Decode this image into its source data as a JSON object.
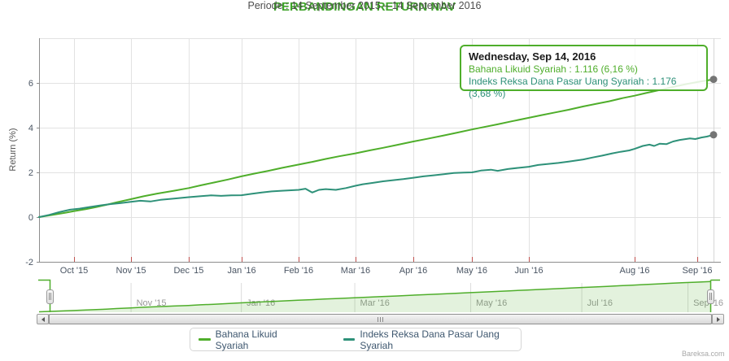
{
  "title": "PERBANDINGAN RETURN NAV",
  "subtitle": "Periode : 14 September 2015 – 14 September 2016",
  "watermark": "Bareksa.com",
  "colors": {
    "title": "#3fa32a",
    "series1": "#4fae2b",
    "series2": "#2e9179",
    "grid": "#e2e2e2",
    "axis_line": "#8d8d8d",
    "x_tick_mark": "#c0504d",
    "axis_text": "#4a5563",
    "nav_label": "#999999",
    "marker": "#757575",
    "crosshair": "#d6d6d6"
  },
  "tooltip": {
    "date": "Wednesday, Sep 14, 2016",
    "line1": "Bahana Likuid Syariah : 1.116 (6,16 %)",
    "line2": "Indeks Reksa Dana Pasar Uang Syariah : 1.176 (3,68 %)"
  },
  "chart_data": {
    "type": "line",
    "title": "PERBANDINGAN RETURN NAV",
    "subtitle": "Periode : 14 September 2015 – 14 September 2016",
    "xlabel": "",
    "ylabel": "Return (%)",
    "ylim": [
      -2,
      8
    ],
    "y_ticks": [
      -2,
      0,
      2,
      4,
      6
    ],
    "grid": true,
    "legend_position": "bottom",
    "x_ticks": [
      {
        "label": "Oct '15",
        "t": 0.0519
      },
      {
        "label": "Nov '15",
        "t": 0.1363
      },
      {
        "label": "Dec '15",
        "t": 0.2219
      },
      {
        "label": "Jan '16",
        "t": 0.3004
      },
      {
        "label": "Feb '16",
        "t": 0.3848
      },
      {
        "label": "Mar '16",
        "t": 0.4692
      },
      {
        "label": "Apr '16",
        "t": 0.5549
      },
      {
        "label": "May '16",
        "t": 0.6417
      },
      {
        "label": "Jun '16",
        "t": 0.7262
      },
      {
        "label": "Aug '16",
        "t": 0.883
      },
      {
        "label": "Sep '16",
        "t": 0.9759
      }
    ],
    "navigator_ticks": [
      {
        "label": "Nov '15",
        "t": 0.1363
      },
      {
        "label": "Jan '16",
        "t": 0.3004
      },
      {
        "label": "Mar '16",
        "t": 0.4692
      },
      {
        "label": "May '16",
        "t": 0.6417
      },
      {
        "label": "Jul '16",
        "t": 0.807
      },
      {
        "label": "Sep '16",
        "t": 0.965
      }
    ],
    "series": [
      {
        "name": "Bahana Likuid Syariah",
        "color": "#4fae2b",
        "final_value_pct": 6.16,
        "points": [
          [
            0,
            0
          ],
          [
            0.02,
            0.1
          ],
          [
            0.04,
            0.2
          ],
          [
            0.052,
            0.27
          ],
          [
            0.07,
            0.36
          ],
          [
            0.085,
            0.45
          ],
          [
            0.1,
            0.55
          ],
          [
            0.115,
            0.66
          ],
          [
            0.136,
            0.8
          ],
          [
            0.155,
            0.93
          ],
          [
            0.175,
            1.05
          ],
          [
            0.2,
            1.18
          ],
          [
            0.222,
            1.3
          ],
          [
            0.24,
            1.42
          ],
          [
            0.26,
            1.55
          ],
          [
            0.28,
            1.68
          ],
          [
            0.3,
            1.82
          ],
          [
            0.32,
            1.95
          ],
          [
            0.34,
            2.07
          ],
          [
            0.36,
            2.2
          ],
          [
            0.385,
            2.35
          ],
          [
            0.405,
            2.47
          ],
          [
            0.425,
            2.6
          ],
          [
            0.445,
            2.72
          ],
          [
            0.469,
            2.85
          ],
          [
            0.49,
            2.98
          ],
          [
            0.51,
            3.1
          ],
          [
            0.53,
            3.22
          ],
          [
            0.555,
            3.38
          ],
          [
            0.575,
            3.5
          ],
          [
            0.6,
            3.65
          ],
          [
            0.62,
            3.78
          ],
          [
            0.642,
            3.92
          ],
          [
            0.66,
            4.03
          ],
          [
            0.68,
            4.15
          ],
          [
            0.7,
            4.28
          ],
          [
            0.726,
            4.44
          ],
          [
            0.745,
            4.56
          ],
          [
            0.765,
            4.68
          ],
          [
            0.785,
            4.8
          ],
          [
            0.807,
            4.95
          ],
          [
            0.825,
            5.06
          ],
          [
            0.845,
            5.18
          ],
          [
            0.865,
            5.32
          ],
          [
            0.883,
            5.43
          ],
          [
            0.9,
            5.55
          ],
          [
            0.92,
            5.68
          ],
          [
            0.94,
            5.82
          ],
          [
            0.96,
            5.95
          ],
          [
            0.976,
            6.04
          ],
          [
            1,
            6.16
          ]
        ]
      },
      {
        "name": "Indeks Reksa Dana Pasar Uang Syariah",
        "color": "#2e9179",
        "final_value_pct": 3.68,
        "points": [
          [
            0,
            0
          ],
          [
            0.015,
            0.1
          ],
          [
            0.03,
            0.22
          ],
          [
            0.046,
            0.33
          ],
          [
            0.06,
            0.38
          ],
          [
            0.075,
            0.45
          ],
          [
            0.09,
            0.52
          ],
          [
            0.105,
            0.58
          ],
          [
            0.12,
            0.62
          ],
          [
            0.136,
            0.68
          ],
          [
            0.15,
            0.73
          ],
          [
            0.165,
            0.7
          ],
          [
            0.18,
            0.77
          ],
          [
            0.2,
            0.83
          ],
          [
            0.222,
            0.89
          ],
          [
            0.24,
            0.94
          ],
          [
            0.255,
            0.97
          ],
          [
            0.27,
            0.95
          ],
          [
            0.285,
            0.97
          ],
          [
            0.3,
            0.98
          ],
          [
            0.315,
            1.04
          ],
          [
            0.33,
            1.1
          ],
          [
            0.345,
            1.15
          ],
          [
            0.36,
            1.18
          ],
          [
            0.385,
            1.22
          ],
          [
            0.395,
            1.27
          ],
          [
            0.405,
            1.1
          ],
          [
            0.415,
            1.22
          ],
          [
            0.425,
            1.25
          ],
          [
            0.44,
            1.22
          ],
          [
            0.455,
            1.3
          ],
          [
            0.469,
            1.4
          ],
          [
            0.48,
            1.47
          ],
          [
            0.495,
            1.53
          ],
          [
            0.51,
            1.6
          ],
          [
            0.525,
            1.65
          ],
          [
            0.54,
            1.7
          ],
          [
            0.555,
            1.76
          ],
          [
            0.57,
            1.82
          ],
          [
            0.585,
            1.87
          ],
          [
            0.6,
            1.92
          ],
          [
            0.615,
            1.97
          ],
          [
            0.63,
            1.99
          ],
          [
            0.642,
            2.0
          ],
          [
            0.655,
            2.08
          ],
          [
            0.67,
            2.12
          ],
          [
            0.68,
            2.07
          ],
          [
            0.695,
            2.15
          ],
          [
            0.71,
            2.2
          ],
          [
            0.726,
            2.25
          ],
          [
            0.74,
            2.33
          ],
          [
            0.755,
            2.38
          ],
          [
            0.77,
            2.42
          ],
          [
            0.785,
            2.48
          ],
          [
            0.807,
            2.58
          ],
          [
            0.82,
            2.66
          ],
          [
            0.835,
            2.75
          ],
          [
            0.85,
            2.85
          ],
          [
            0.862,
            2.92
          ],
          [
            0.875,
            2.98
          ],
          [
            0.883,
            3.05
          ],
          [
            0.895,
            3.18
          ],
          [
            0.905,
            3.24
          ],
          [
            0.912,
            3.18
          ],
          [
            0.92,
            3.28
          ],
          [
            0.93,
            3.26
          ],
          [
            0.94,
            3.38
          ],
          [
            0.95,
            3.45
          ],
          [
            0.965,
            3.52
          ],
          [
            0.973,
            3.49
          ],
          [
            0.982,
            3.56
          ],
          [
            0.99,
            3.6
          ],
          [
            1,
            3.68
          ]
        ]
      }
    ]
  }
}
